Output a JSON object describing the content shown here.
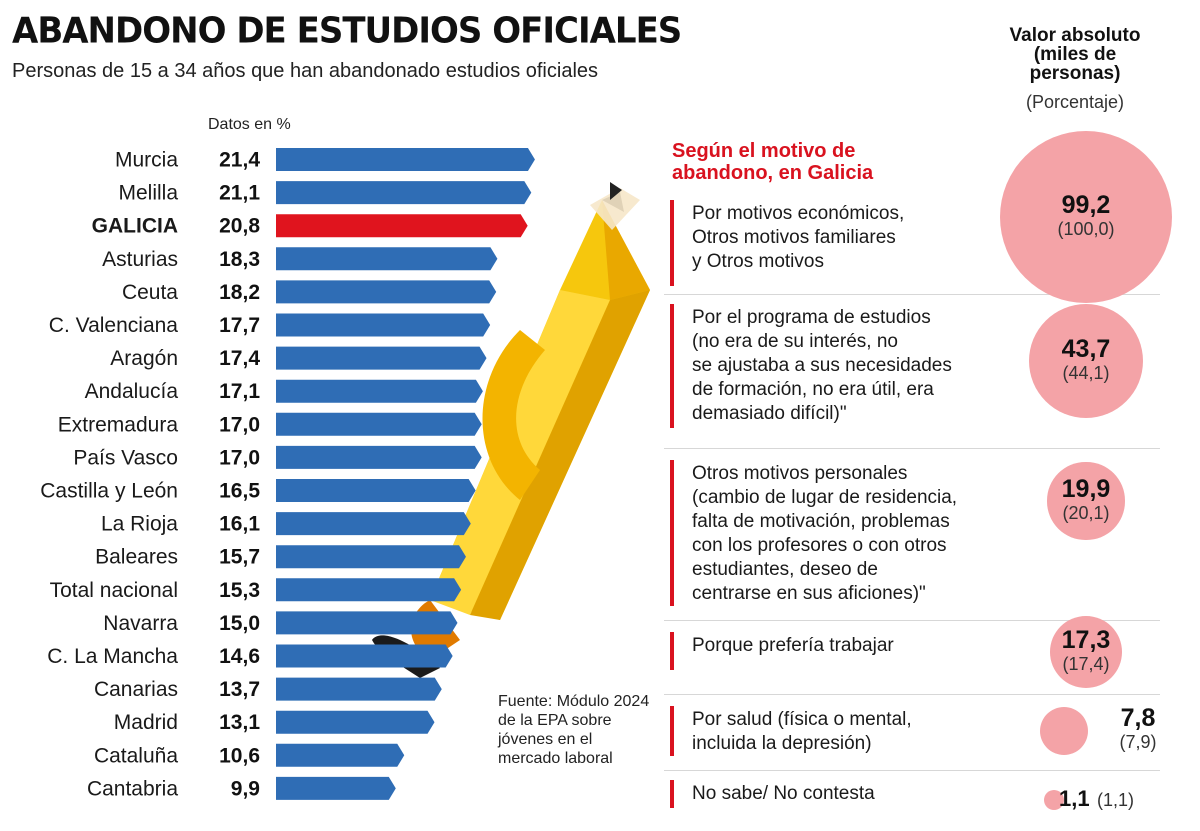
{
  "header": {
    "title": "ABANDONO DE ESTUDIOS OFICIALES",
    "subtitle": "Personas de 15 a 34 años que han abandonado estudios oficiales",
    "units_label": "Datos en %"
  },
  "source": "Fuente: Módulo 2024 de la EPA sobre jóvenes en el mercado laboral",
  "colors": {
    "bar": "#2f6db5",
    "highlight": "#e0141e",
    "bubble": "#f4a3a7",
    "accent": "#d9121f"
  },
  "chart_data": [
    {
      "type": "bar",
      "orientation": "horizontal",
      "units": "Datos en %",
      "categories": [
        "Murcia",
        "Melilla",
        "GALICIA",
        "Asturias",
        "Ceuta",
        "C. Valenciana",
        "Aragón",
        "Andalucía",
        "Extremadura",
        "País Vasco",
        "Castilla y León",
        "La Rioja",
        "Baleares",
        "Total nacional",
        "Navarra",
        "C. La Mancha",
        "Canarias",
        "Madrid",
        "Cataluña",
        "Cantabria"
      ],
      "values": [
        21.4,
        21.1,
        20.8,
        18.3,
        18.2,
        17.7,
        17.4,
        17.1,
        17.0,
        17.0,
        16.5,
        16.1,
        15.7,
        15.3,
        15.0,
        14.6,
        13.7,
        13.1,
        10.6,
        9.9
      ],
      "value_labels": [
        "21,4",
        "21,1",
        "20,8",
        "18,3",
        "18,2",
        "17,7",
        "17,4",
        "17,1",
        "17,0",
        "17,0",
        "16,5",
        "16,1",
        "15,7",
        "15,3",
        "15,0",
        "14,6",
        "13,7",
        "13,1",
        "10,6",
        "9,9"
      ],
      "highlight": "GALICIA"
    },
    {
      "type": "bubble",
      "title": "Según el motivo de abandono, en Galicia",
      "legend_title": "Valor absoluto (miles de personas)",
      "legend_subtitle": "(Porcentaje)",
      "items": [
        {
          "label": "Por motivos económicos,\nOtros motivos familiares\ny Otros motivos",
          "value": 99.2,
          "value_label": "99,2",
          "percent_label": "(100,0)"
        },
        {
          "label": "Por el programa de estudios\n(no era de su interés, no\nse ajustaba a sus necesidades\nde formación, no era útil, era\ndemasiado difícil)\"",
          "value": 43.7,
          "value_label": "43,7",
          "percent_label": "(44,1)"
        },
        {
          "label": "Otros motivos personales\n(cambio de lugar de residencia,\nfalta de motivación, problemas\ncon los profesores o con otros\nestudiantes, deseo de\ncentrarse en sus aficiones)\"",
          "value": 19.9,
          "value_label": "19,9",
          "percent_label": "(20,1)"
        },
        {
          "label": "Porque prefería trabajar",
          "value": 17.3,
          "value_label": "17,3",
          "percent_label": "(17,4)"
        },
        {
          "label": "Por salud (física o mental,\nincluida la depresión)",
          "value": 7.8,
          "value_label": "7,8",
          "percent_label": "(7,9)"
        },
        {
          "label": "No sabe/ No contesta",
          "value": 1.1,
          "value_label": "1,1",
          "percent_label": "(1,1)"
        }
      ]
    }
  ]
}
